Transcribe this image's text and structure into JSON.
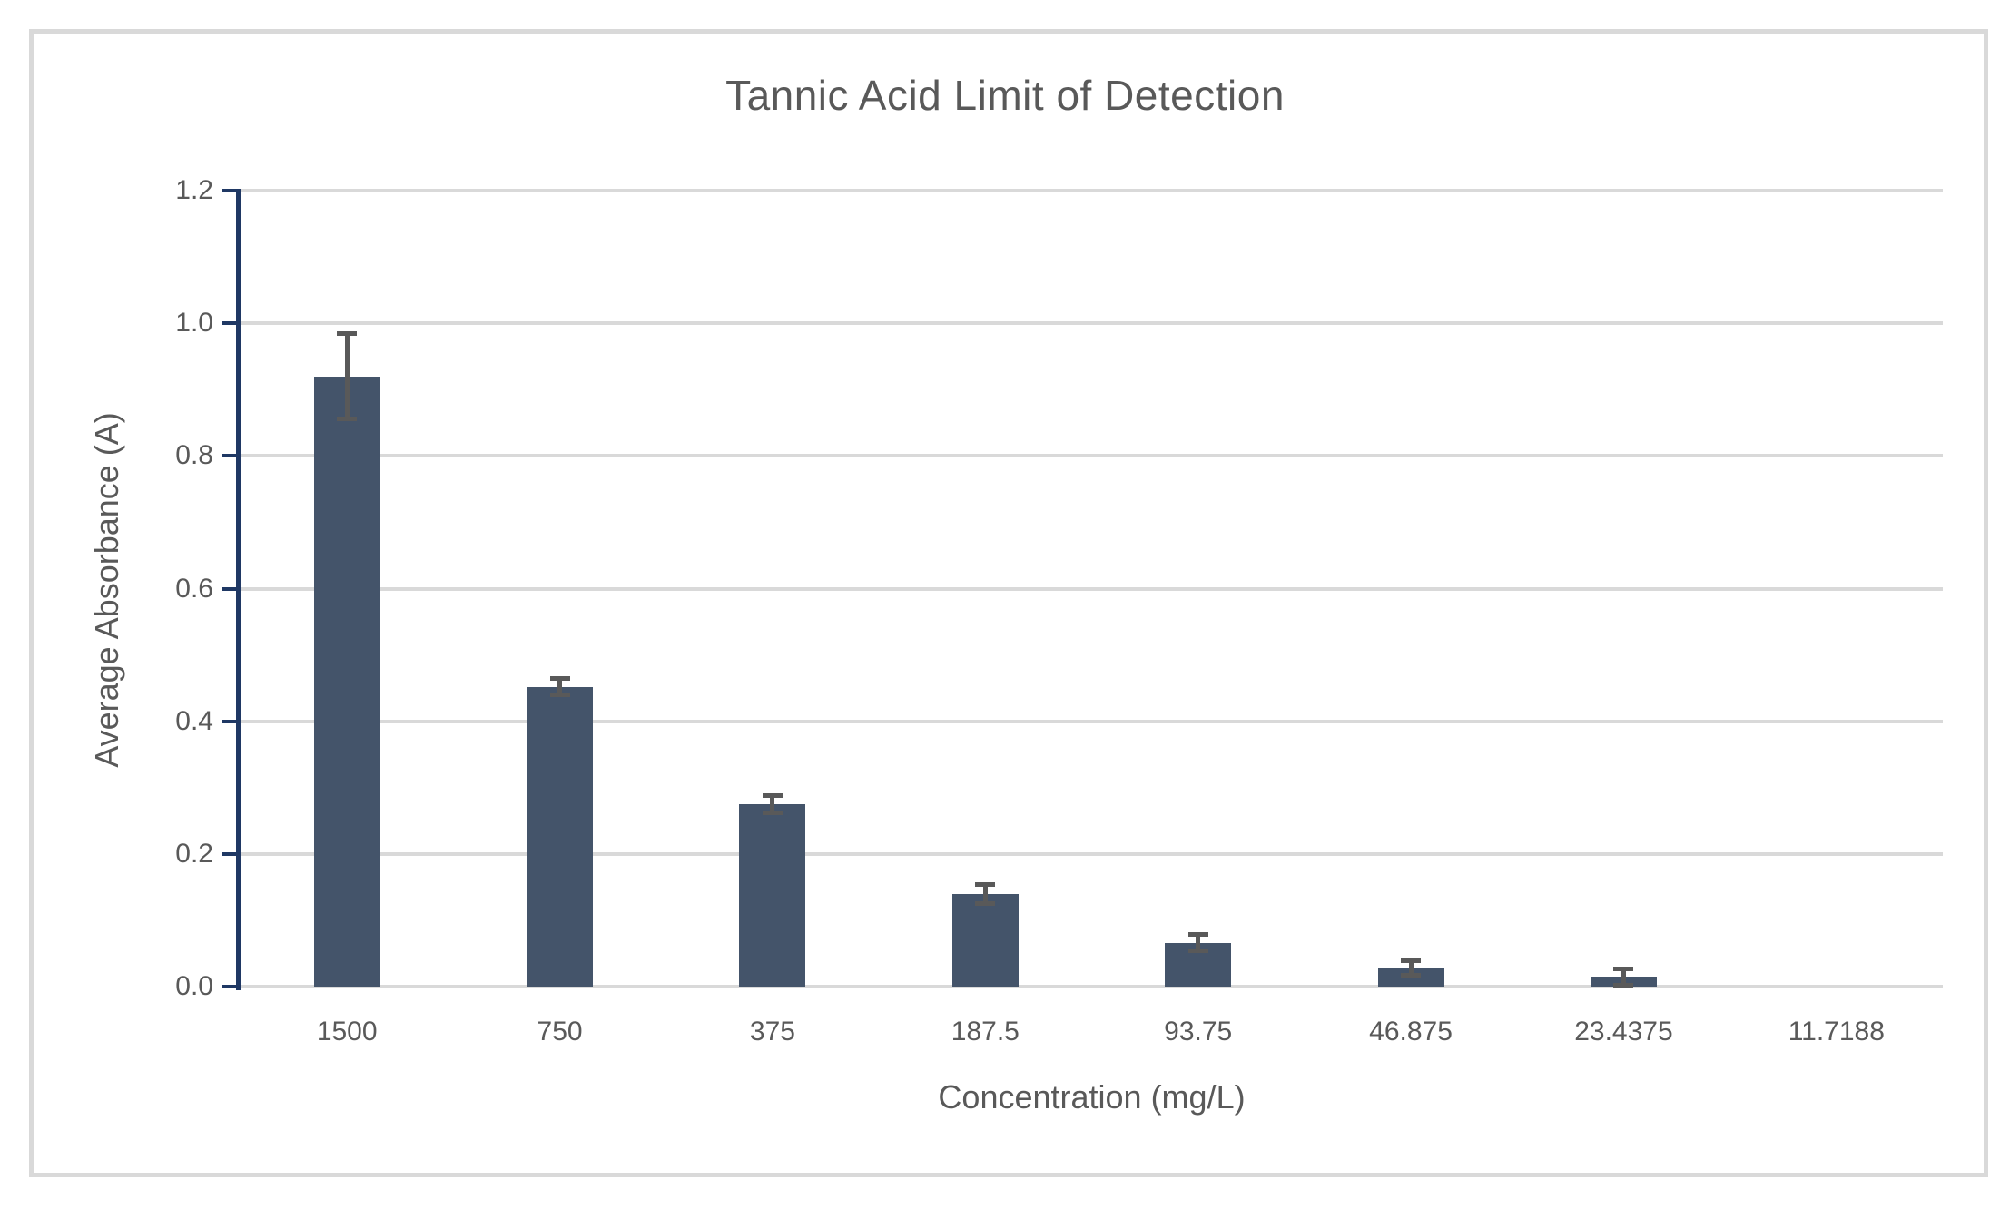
{
  "page": {
    "background_color": "#FFFFFF",
    "frame_border_color": "#D9D9D9"
  },
  "chart_data": {
    "type": "bar",
    "title": "Tannic Acid Limit of Detection",
    "xlabel": "Concentration (mg/L)",
    "ylabel": "Average Absorbance (A)",
    "categories": [
      "1500",
      "750",
      "375",
      "187.5",
      "93.75",
      "46.875",
      "23.4375",
      "11.7188"
    ],
    "values": [
      0.92,
      0.452,
      0.275,
      0.14,
      0.066,
      0.028,
      0.015,
      0
    ],
    "error_bars": [
      0.065,
      0.013,
      0.014,
      0.015,
      0.013,
      0.012,
      0.013,
      0
    ],
    "ylim": [
      0,
      1.2
    ],
    "ytick_step": 0.2,
    "ytick_labels": [
      "1.2",
      "1.0",
      "0.8",
      "0.6",
      "0.4",
      "0.2",
      "0.0"
    ],
    "grid": true,
    "legend": "none",
    "error_bar_style": "plus-minus with caps",
    "colors": {
      "bar": "#44546A",
      "error_bar": "#595959",
      "axis_line": "#1F3864",
      "gridline": "#D9D9D9",
      "text": "#595959"
    }
  }
}
